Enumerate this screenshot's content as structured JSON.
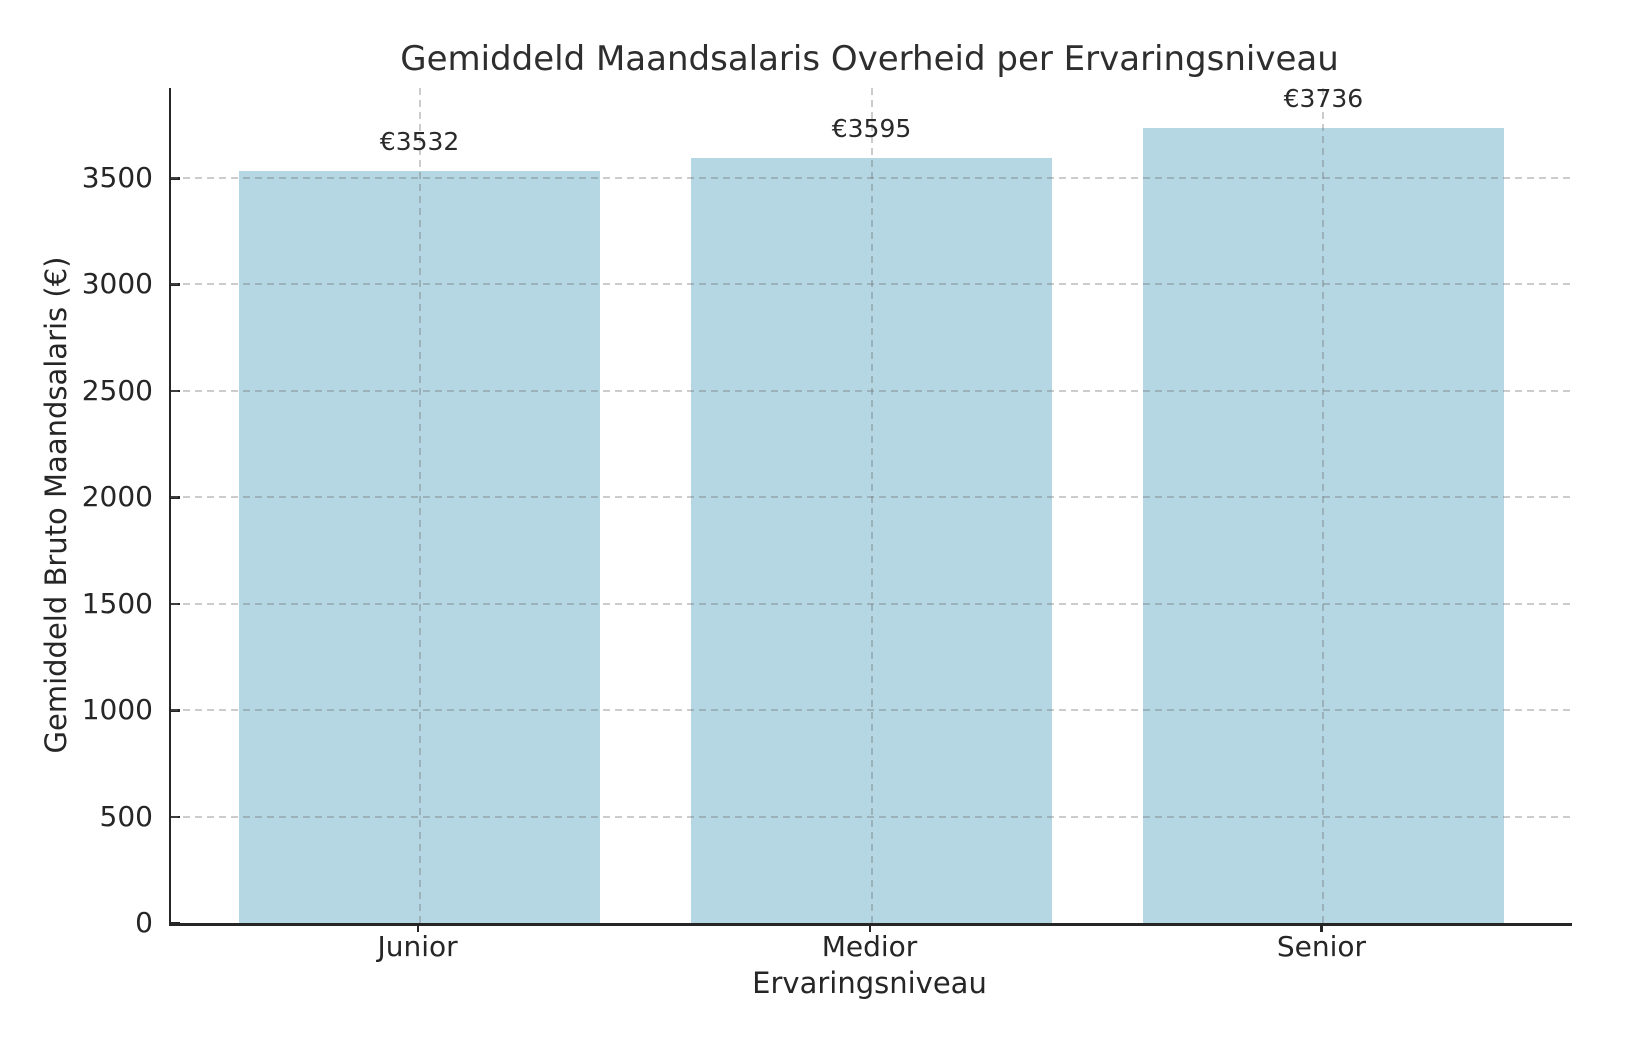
{
  "chart_data": {
    "type": "bar",
    "title": "Gemiddeld Maandsalaris Overheid per Ervaringsniveau",
    "xlabel": "Ervaringsniveau",
    "ylabel": "Gemiddeld Bruto Maandsalaris (€)",
    "categories": [
      "Junior",
      "Medior",
      "Senior"
    ],
    "values": [
      3532,
      3595,
      3736
    ],
    "value_labels": [
      "€3532",
      "€3595",
      "€3736"
    ],
    "yticks": [
      0,
      500,
      1000,
      1500,
      2000,
      2500,
      3000,
      3500
    ],
    "ylim": [
      0,
      3923
    ],
    "grid": "dashed-both-axes-above-bars",
    "legend": "none",
    "colors": {
      "bar_fill": "#b4d7e3",
      "grid_line": "#c9c9c9",
      "spine": "#262626",
      "text": "#262626",
      "background": "#ffffff"
    }
  }
}
